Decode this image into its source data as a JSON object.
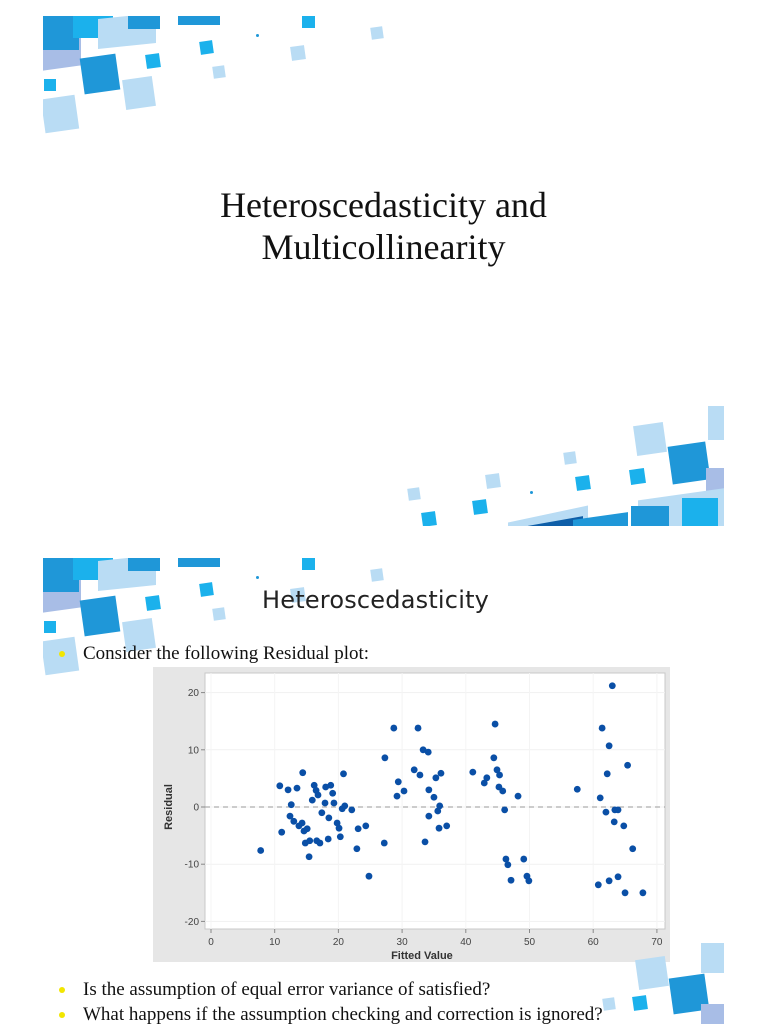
{
  "slides": [
    {
      "title": "Heteroscedasticity and Multicollinearity",
      "title_lines": [
        "Heteroscedasticity and",
        "Multicollinearity"
      ]
    },
    {
      "title": "Heteroscedasticity",
      "intro_bullet": "Consider the following Residual plot:",
      "questions": [
        "Is the assumption of equal error variance of satisfied?",
        "What happens if the assumption checking and correction is ignored?"
      ]
    }
  ],
  "colors": {
    "bullet": "#f2e600",
    "point": "#0a4fa6",
    "deco_dark": "#1f97d8",
    "deco_mid": "#1bb1ec",
    "deco_light": "#b9dcf4",
    "deco_lavender": "#a8bde6",
    "chart_bg": "#e6e6e6"
  },
  "chart_data": {
    "type": "scatter",
    "title": "",
    "xlabel": "Fitted Value",
    "ylabel": "Residual",
    "xlim": [
      0,
      70
    ],
    "ylim": [
      -20,
      22
    ],
    "xticks": [
      0,
      10,
      20,
      30,
      40,
      50,
      60,
      70
    ],
    "yticks": [
      -20,
      -10,
      0,
      10,
      20
    ],
    "reference_line": {
      "y": 0,
      "style": "dashed"
    },
    "grid": true,
    "legend": null,
    "points": [
      [
        7.8,
        -7.6
      ],
      [
        10.8,
        3.7
      ],
      [
        11.1,
        -4.4
      ],
      [
        12.1,
        3.0
      ],
      [
        12.4,
        -1.6
      ],
      [
        12.6,
        0.4
      ],
      [
        13.0,
        -2.5
      ],
      [
        13.5,
        3.3
      ],
      [
        13.8,
        -3.3
      ],
      [
        14.3,
        -2.8
      ],
      [
        14.4,
        6.0
      ],
      [
        14.6,
        -4.2
      ],
      [
        14.8,
        -6.3
      ],
      [
        15.1,
        -3.8
      ],
      [
        15.4,
        -8.7
      ],
      [
        15.5,
        -5.9
      ],
      [
        15.9,
        1.2
      ],
      [
        16.2,
        3.8
      ],
      [
        16.5,
        2.9
      ],
      [
        16.6,
        -5.9
      ],
      [
        16.8,
        2.1
      ],
      [
        17.1,
        -6.3
      ],
      [
        17.4,
        -1.0
      ],
      [
        17.9,
        0.7
      ],
      [
        18.0,
        3.5
      ],
      [
        18.4,
        -5.6
      ],
      [
        18.5,
        -1.9
      ],
      [
        18.8,
        3.8
      ],
      [
        19.1,
        2.4
      ],
      [
        19.3,
        0.7
      ],
      [
        19.8,
        -2.8
      ],
      [
        20.1,
        -3.7
      ],
      [
        20.3,
        -5.2
      ],
      [
        20.6,
        -0.3
      ],
      [
        20.8,
        5.8
      ],
      [
        21.0,
        0.2
      ],
      [
        22.1,
        -0.5
      ],
      [
        22.9,
        -7.3
      ],
      [
        23.1,
        -3.8
      ],
      [
        24.3,
        -3.3
      ],
      [
        24.8,
        -12.1
      ],
      [
        27.2,
        -6.3
      ],
      [
        27.3,
        8.6
      ],
      [
        28.7,
        13.8
      ],
      [
        29.2,
        1.9
      ],
      [
        29.4,
        4.4
      ],
      [
        30.3,
        2.8
      ],
      [
        31.9,
        6.5
      ],
      [
        32.5,
        13.8
      ],
      [
        32.8,
        5.6
      ],
      [
        33.3,
        10.0
      ],
      [
        33.6,
        -6.1
      ],
      [
        34.1,
        9.6
      ],
      [
        34.2,
        3.0
      ],
      [
        34.2,
        -1.6
      ],
      [
        35.0,
        1.7
      ],
      [
        35.3,
        5.1
      ],
      [
        35.6,
        -0.7
      ],
      [
        35.8,
        -3.7
      ],
      [
        35.9,
        0.2
      ],
      [
        36.1,
        5.9
      ],
      [
        37.0,
        -3.3
      ],
      [
        41.1,
        6.1
      ],
      [
        42.9,
        4.2
      ],
      [
        43.3,
        5.1
      ],
      [
        44.4,
        8.6
      ],
      [
        44.6,
        14.5
      ],
      [
        44.9,
        6.5
      ],
      [
        45.2,
        3.5
      ],
      [
        45.3,
        5.6
      ],
      [
        45.8,
        2.8
      ],
      [
        46.1,
        -0.5
      ],
      [
        46.3,
        -9.1
      ],
      [
        46.6,
        -10.1
      ],
      [
        47.1,
        -12.8
      ],
      [
        48.2,
        1.9
      ],
      [
        49.1,
        -9.1
      ],
      [
        49.6,
        -12.1
      ],
      [
        49.9,
        -12.9
      ],
      [
        57.5,
        3.1
      ],
      [
        60.8,
        -13.6
      ],
      [
        61.1,
        1.6
      ],
      [
        61.4,
        13.8
      ],
      [
        62.0,
        -0.9
      ],
      [
        62.2,
        5.8
      ],
      [
        62.5,
        10.7
      ],
      [
        62.5,
        -12.9
      ],
      [
        63.0,
        21.2
      ],
      [
        63.3,
        -2.6
      ],
      [
        63.4,
        -0.5
      ],
      [
        63.9,
        -0.5
      ],
      [
        63.9,
        -12.2
      ],
      [
        64.8,
        -3.3
      ],
      [
        65.0,
        -15.0
      ],
      [
        65.4,
        7.3
      ],
      [
        66.2,
        -7.3
      ],
      [
        67.8,
        -15.0
      ]
    ]
  }
}
